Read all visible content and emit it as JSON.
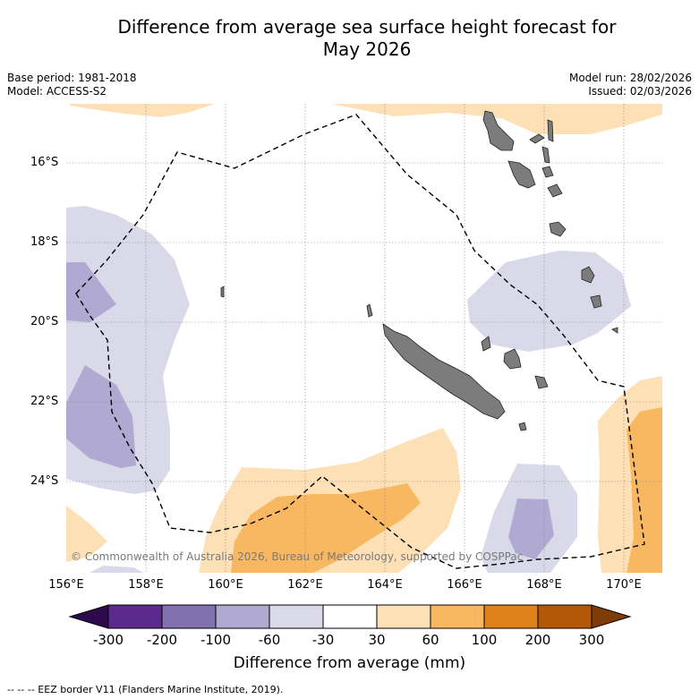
{
  "title_line1": "Difference from average sea surface height forecast for",
  "title_line2": "May 2026",
  "base_period": "Base period: 1981-2018",
  "model": "Model: ACCESS-S2",
  "model_run": "Model run: 28/02/2026",
  "issued": "Issued: 02/03/2026",
  "lat_ticks": [
    "16°S",
    "18°S",
    "20°S",
    "22°S",
    "24°S"
  ],
  "lon_ticks": [
    "156°E",
    "158°E",
    "160°E",
    "162°E",
    "164°E",
    "166°E",
    "168°E",
    "170°E"
  ],
  "copyright": "© Commonwealth of Australia 2026, Bureau of Meteorology, supported by COSPPac",
  "colorbar": {
    "labels": [
      "-300",
      "-200",
      "-100",
      "-60",
      "-30",
      "30",
      "60",
      "100",
      "200",
      "300"
    ],
    "colors": [
      "#2d0a4e",
      "#5b2a8c",
      "#8171ae",
      "#b0a9d2",
      "#d9d9ea",
      "#ffffff",
      "#fde0b6",
      "#f8b761",
      "#e0821c",
      "#b35808",
      "#7f3b08"
    ],
    "title": "Difference from average (mm)"
  },
  "footnote": "--  --  -- EEZ border V11 (Flanders Marine Institute, 2019)."
}
